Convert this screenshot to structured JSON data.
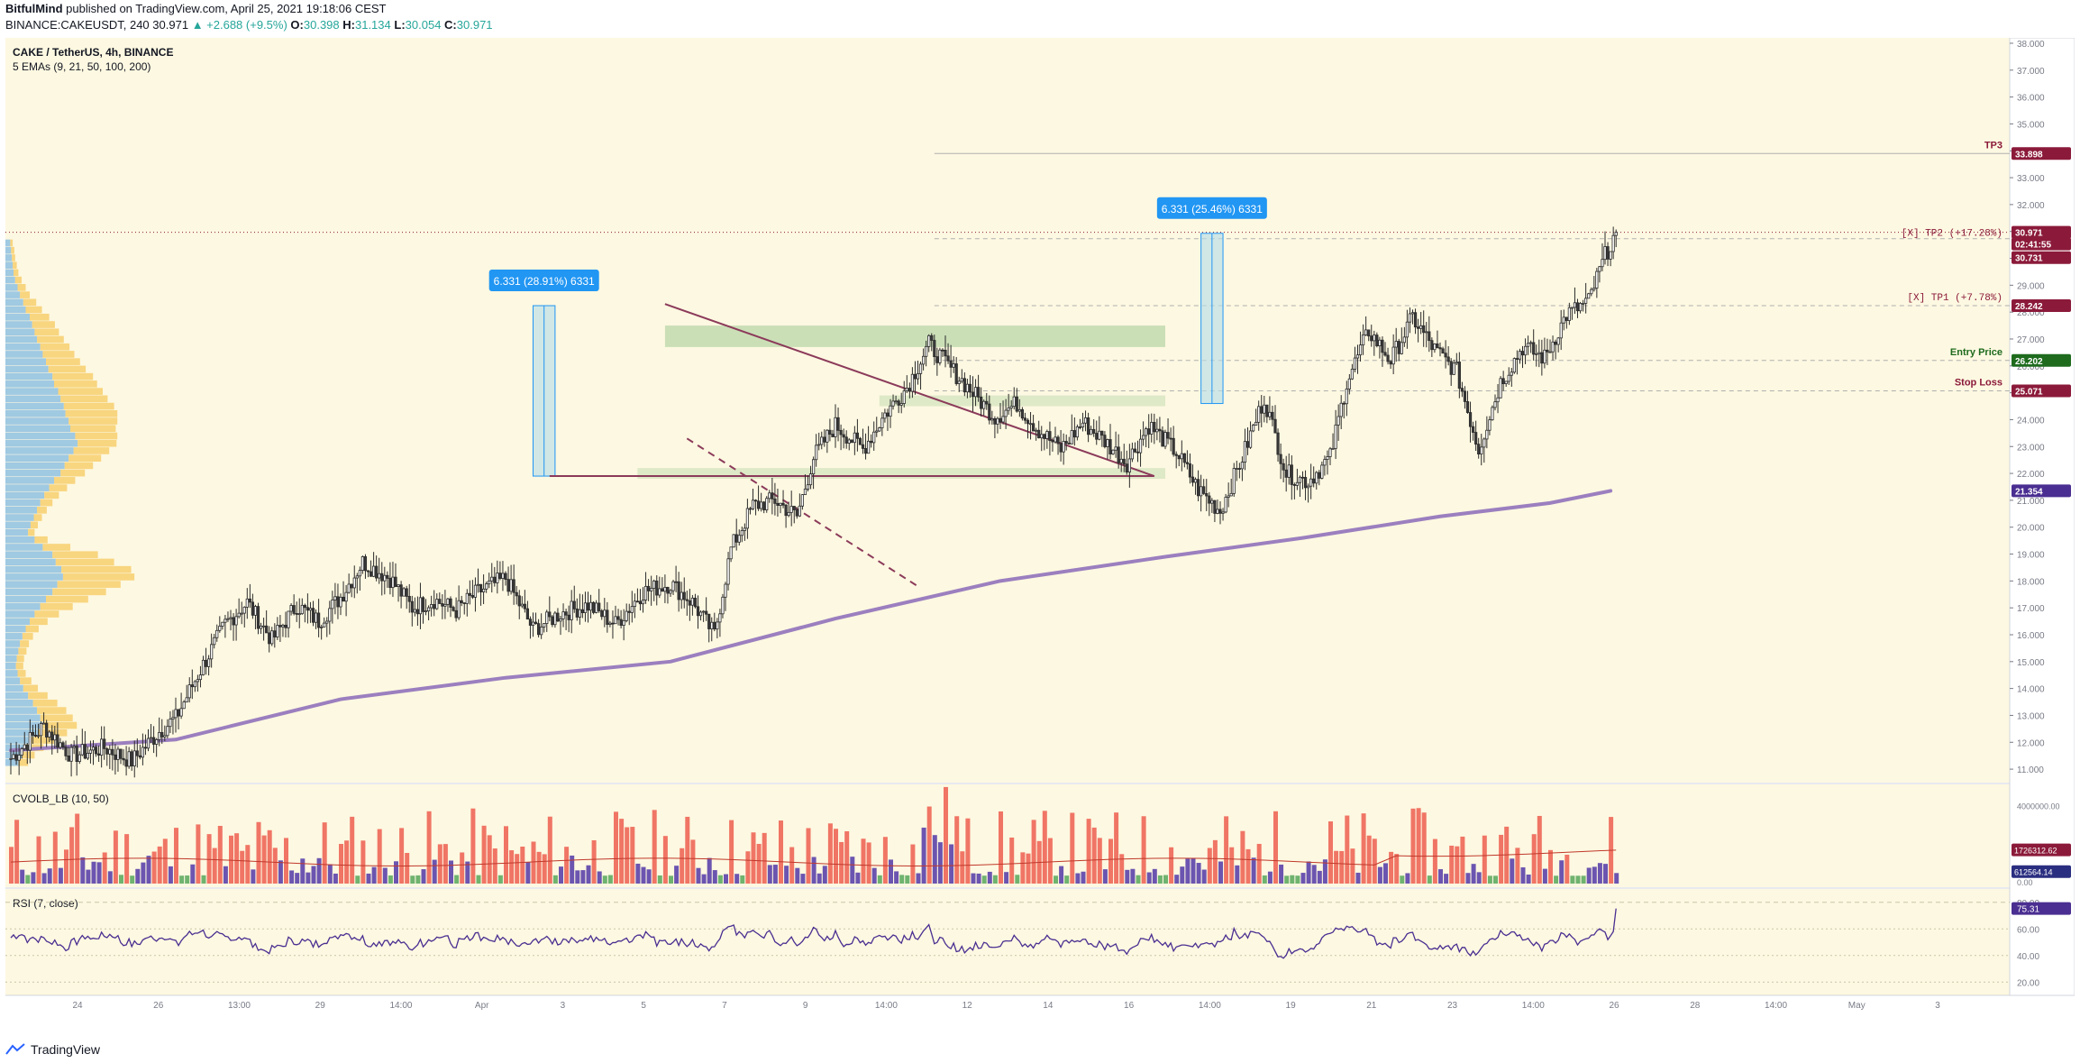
{
  "header": {
    "author": "BitfulMind",
    "published_text": "published on TradingView.com, April 25, 2021 19:18:06 CEST",
    "symbol_line": "BINANCE:CAKEUSDT, 240",
    "last": "30.971",
    "change": "▲ +2.688 (+9.5%)",
    "o_label": "O:",
    "o": "30.398",
    "h_label": "H:",
    "h": "31.134",
    "l_label": "L:",
    "l": "30.054",
    "c_label": "C:",
    "c": "30.971"
  },
  "footer": {
    "brand": "TradingView"
  },
  "colors": {
    "panel_bg": "#fdf8e1",
    "up": "#ffffff",
    "down": "#3a3a3a",
    "ema": "#9b7fbf",
    "trend": "#8b3a5a",
    "zone": "#b9d7a8",
    "measure": "#b8dde8",
    "vol_red": "#f07565",
    "vol_green": "#6fb36f",
    "vol_purple": "#6b55b0",
    "rsi": "#4a2e91",
    "label_blue": "#2196f3",
    "tp": "#8b1a3a",
    "entry": "#1e6b1e"
  },
  "chart_data": [
    {
      "type": "candlestick",
      "title": "CAKE / TetherUS, 4h, BINANCE",
      "indicator": "5 EMAs (9, 21, 50, 100, 200)",
      "ylim": [
        10.5,
        38.2
      ],
      "y_ticks": [
        "38.000",
        "37.000",
        "36.000",
        "35.000",
        "34.000",
        "33.000",
        "32.000",
        "31.000",
        "30.000",
        "29.000",
        "28.000",
        "27.000",
        "26.000",
        "25.000",
        "24.000",
        "23.000",
        "22.000",
        "21.000",
        "20.000",
        "19.000",
        "18.000",
        "17.000",
        "16.000",
        "15.000",
        "14.000",
        "13.000",
        "12.000",
        "11.000"
      ],
      "x_ticks": [
        "24",
        "26",
        "13:00",
        "29",
        "14:00",
        "Apr",
        "3",
        "5",
        "7",
        "9",
        "14:00",
        "12",
        "14",
        "16",
        "14:00",
        "19",
        "21",
        "23",
        "14:00",
        "26",
        "28",
        "14:00",
        "May",
        "3"
      ],
      "price_path": [
        [
          0,
          11.4
        ],
        [
          12,
          12.6
        ],
        [
          22,
          11.5
        ],
        [
          34,
          11.8
        ],
        [
          44,
          11.3
        ],
        [
          54,
          12.4
        ],
        [
          60,
          12.9
        ],
        [
          68,
          14.5
        ],
        [
          78,
          16.4
        ],
        [
          86,
          17.2
        ],
        [
          95,
          15.8
        ],
        [
          104,
          17.1
        ],
        [
          112,
          16.5
        ],
        [
          120,
          17.4
        ],
        [
          128,
          18.7
        ],
        [
          138,
          18.1
        ],
        [
          146,
          17.0
        ],
        [
          154,
          17.3
        ],
        [
          162,
          16.9
        ],
        [
          170,
          17.6
        ],
        [
          180,
          18.1
        ],
        [
          190,
          16.2
        ],
        [
          200,
          16.8
        ],
        [
          210,
          17.1
        ],
        [
          220,
          16.4
        ],
        [
          230,
          17.6
        ],
        [
          240,
          17.9
        ],
        [
          248,
          17.2
        ],
        [
          256,
          16.0
        ],
        [
          262,
          19.2
        ],
        [
          270,
          20.8
        ],
        [
          278,
          21.0
        ],
        [
          286,
          20.4
        ],
        [
          292,
          22.6
        ],
        [
          300,
          23.8
        ],
        [
          310,
          22.9
        ],
        [
          318,
          24.2
        ],
        [
          326,
          25.2
        ],
        [
          334,
          26.8
        ],
        [
          342,
          25.9
        ],
        [
          350,
          25.0
        ],
        [
          358,
          24.1
        ],
        [
          366,
          24.6
        ],
        [
          374,
          23.6
        ],
        [
          382,
          22.9
        ],
        [
          390,
          23.9
        ],
        [
          398,
          23.2
        ],
        [
          406,
          22.4
        ],
        [
          414,
          23.8
        ],
        [
          424,
          22.8
        ],
        [
          432,
          21.4
        ],
        [
          440,
          20.6
        ],
        [
          448,
          22.6
        ],
        [
          456,
          24.8
        ],
        [
          464,
          22.0
        ],
        [
          472,
          21.7
        ],
        [
          480,
          22.6
        ],
        [
          486,
          25.4
        ],
        [
          494,
          27.3
        ],
        [
          502,
          26.2
        ],
        [
          510,
          27.8
        ],
        [
          518,
          26.6
        ],
        [
          526,
          25.8
        ],
        [
          534,
          22.9
        ],
        [
          542,
          25.4
        ],
        [
          550,
          26.7
        ],
        [
          558,
          26.3
        ],
        [
          566,
          27.9
        ],
        [
          574,
          28.4
        ],
        [
          580,
          30.1
        ],
        [
          584,
          30.97
        ]
      ],
      "ema200_path": [
        [
          0,
          11.7
        ],
        [
          60,
          12.1
        ],
        [
          120,
          13.6
        ],
        [
          180,
          14.4
        ],
        [
          240,
          15.0
        ],
        [
          300,
          16.6
        ],
        [
          360,
          18.0
        ],
        [
          420,
          18.9
        ],
        [
          470,
          19.6
        ],
        [
          520,
          20.4
        ],
        [
          560,
          20.9
        ],
        [
          582,
          21.35
        ]
      ],
      "volume_profile_up": [
        0.6,
        0.7,
        0.8,
        0.9,
        1.0,
        1.2,
        1.5,
        1.8,
        2.2,
        2.5,
        3.0,
        3.3,
        3.6,
        3.9,
        4.3,
        4.6,
        5.0,
        5.3,
        5.8,
        6.0,
        6.5,
        6.8,
        7.2,
        7.4,
        7.8,
        8.0,
        8.6,
        8.9,
        8.4,
        7.8,
        7.3,
        6.8,
        6.0,
        5.4,
        4.8,
        4.3,
        3.9,
        3.5,
        3.1,
        2.8,
        3.6,
        4.6,
        5.8,
        6.2,
        6.9,
        7.1,
        6.4,
        5.8,
        5.0,
        4.3,
        3.6,
        3.0,
        2.5,
        2.1,
        1.8,
        1.6,
        1.4,
        1.3,
        1.5,
        1.8,
        2.2,
        2.8,
        3.4,
        3.9,
        4.3,
        4.6,
        4.0,
        3.2,
        2.5,
        2.0,
        1.6
      ],
      "volume_profile_down": [
        0.3,
        0.4,
        0.4,
        0.5,
        0.6,
        0.8,
        1.0,
        1.2,
        1.6,
        2.0,
        2.4,
        2.8,
        3.0,
        3.3,
        3.6,
        3.9,
        4.2,
        4.6,
        5.0,
        5.3,
        5.5,
        5.8,
        6.2,
        6.4,
        6.0,
        5.6,
        5.2,
        4.8,
        4.4,
        4.0,
        3.5,
        3.0,
        2.6,
        2.2,
        1.8,
        1.5,
        1.2,
        1.0,
        0.9,
        0.8,
        1.6,
        3.4,
        5.6,
        7.2,
        8.6,
        8.8,
        7.8,
        6.6,
        5.2,
        4.0,
        3.0,
        2.2,
        1.6,
        1.3,
        1.1,
        1.0,
        0.9,
        0.9,
        1.0,
        1.4,
        1.8,
        2.4,
        3.0,
        3.6,
        4.0,
        4.2,
        3.6,
        2.8,
        2.2,
        1.6,
        1.2
      ]
    },
    {
      "type": "bar",
      "title": "CVOLB_LB (10, 50)",
      "y_ticks": [
        "4000000.00",
        "0.00"
      ],
      "ylim": [
        0,
        4800000
      ],
      "last_labels": [
        "1726312.62",
        "612564.14"
      ]
    },
    {
      "type": "line",
      "title": "RSI (7, close)",
      "ylim": [
        10,
        90
      ],
      "y_ticks": [
        "80.00",
        "60.00",
        "40.00",
        "20.00"
      ],
      "last_value": "75.31"
    }
  ],
  "annotations": {
    "measure_left": "6.331 (28.91%) 6331",
    "measure_right": "6.331 (25.46%) 6331",
    "tp3": "TP3",
    "tp2": "[X] TP2 (+17.28%)",
    "tp1": "[X] TP1 (+7.78%)",
    "entry": "Entry Price",
    "stop": "Stop Loss"
  },
  "price_labels": {
    "tp3": "33.898",
    "last": "30.971",
    "countdown": "02:41:55",
    "tp2": "30.731",
    "tp1": "28.242",
    "entry": "26.202",
    "stop": "25.071",
    "ema": "21.354"
  }
}
